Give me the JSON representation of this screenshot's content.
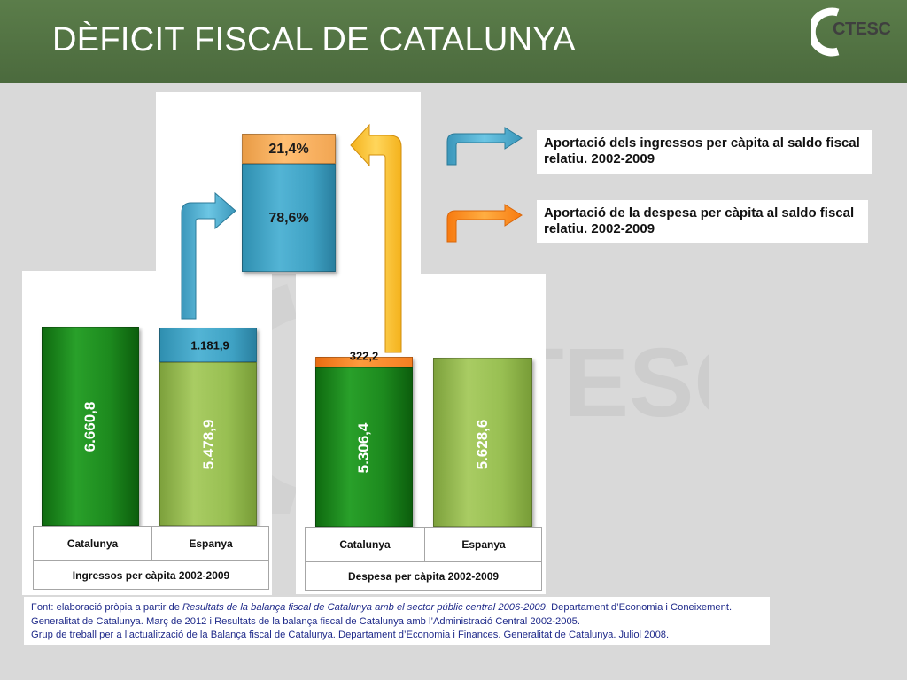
{
  "page": {
    "title": "DÈFICIT FISCAL DE CATALUNYA",
    "logo_text": "CTESC",
    "watermark_text": "CTESC"
  },
  "chart_data": [
    {
      "type": "bar",
      "stacked": true,
      "title": "",
      "xlabel": "Ingressos per càpita 2002-2009",
      "categories": [
        "Catalunya",
        "Espanya"
      ],
      "series": [
        {
          "values": [
            6660.8,
            5478.9
          ],
          "labels": [
            "6.660,8",
            "5.478,9"
          ]
        },
        {
          "values": [
            0,
            1181.9
          ],
          "labels": [
            "",
            "1.181,9"
          ]
        }
      ]
    },
    {
      "type": "bar",
      "stacked": true,
      "title": "",
      "xlabel": "Despesa per càpita 2002-2009",
      "categories": [
        "Catalunya",
        "Espanya"
      ],
      "series": [
        {
          "values": [
            5306.4,
            5628.6
          ],
          "labels": [
            "5.306,4",
            "5.628,6"
          ]
        },
        {
          "values": [
            322.2,
            0
          ],
          "labels": [
            "322,2",
            ""
          ]
        }
      ]
    },
    {
      "type": "bar",
      "stacked": true,
      "title": "",
      "categories": [
        ""
      ],
      "series": [
        {
          "values": [
            78.6
          ],
          "labels": [
            "78,6%"
          ]
        },
        {
          "values": [
            21.4
          ],
          "labels": [
            "21,4%"
          ]
        }
      ]
    }
  ],
  "legend": [
    {
      "text": "Aportació dels ingressos per càpita al saldo fiscal relatiu. 2002-2009",
      "color": "#4bb0d2"
    },
    {
      "text": "Aportació de la despesa per càpita al saldo fiscal relatiu. 2002-2009",
      "color": "#ff8c1a"
    }
  ],
  "colors": {
    "dark_green": "#1d8a1e",
    "light_green": "#98bf52",
    "blue": "#3fa2c4",
    "orange": "#f47f22",
    "yellow_arrow": "#ffc93a",
    "header": "#536f44"
  },
  "source": {
    "prefix": "Font: elaboració pròpia a partir de ",
    "italic1": "Resultats de la balança fiscal de Catalunya amb el sector públic central 2006-2009",
    "mid1": ". Departament d’Economia i Coneixement. Generalitat de Catalunya. Març de 2012 i Resultats de la balança fiscal de Catalunya amb l’Administració Central 2002-2005.",
    "line3": "Grup de treball per a l’actualització de la Balança fiscal de Catalunya. Departament d’Economia i Finances. Generalitat de Catalunya. Juliol 2008."
  }
}
